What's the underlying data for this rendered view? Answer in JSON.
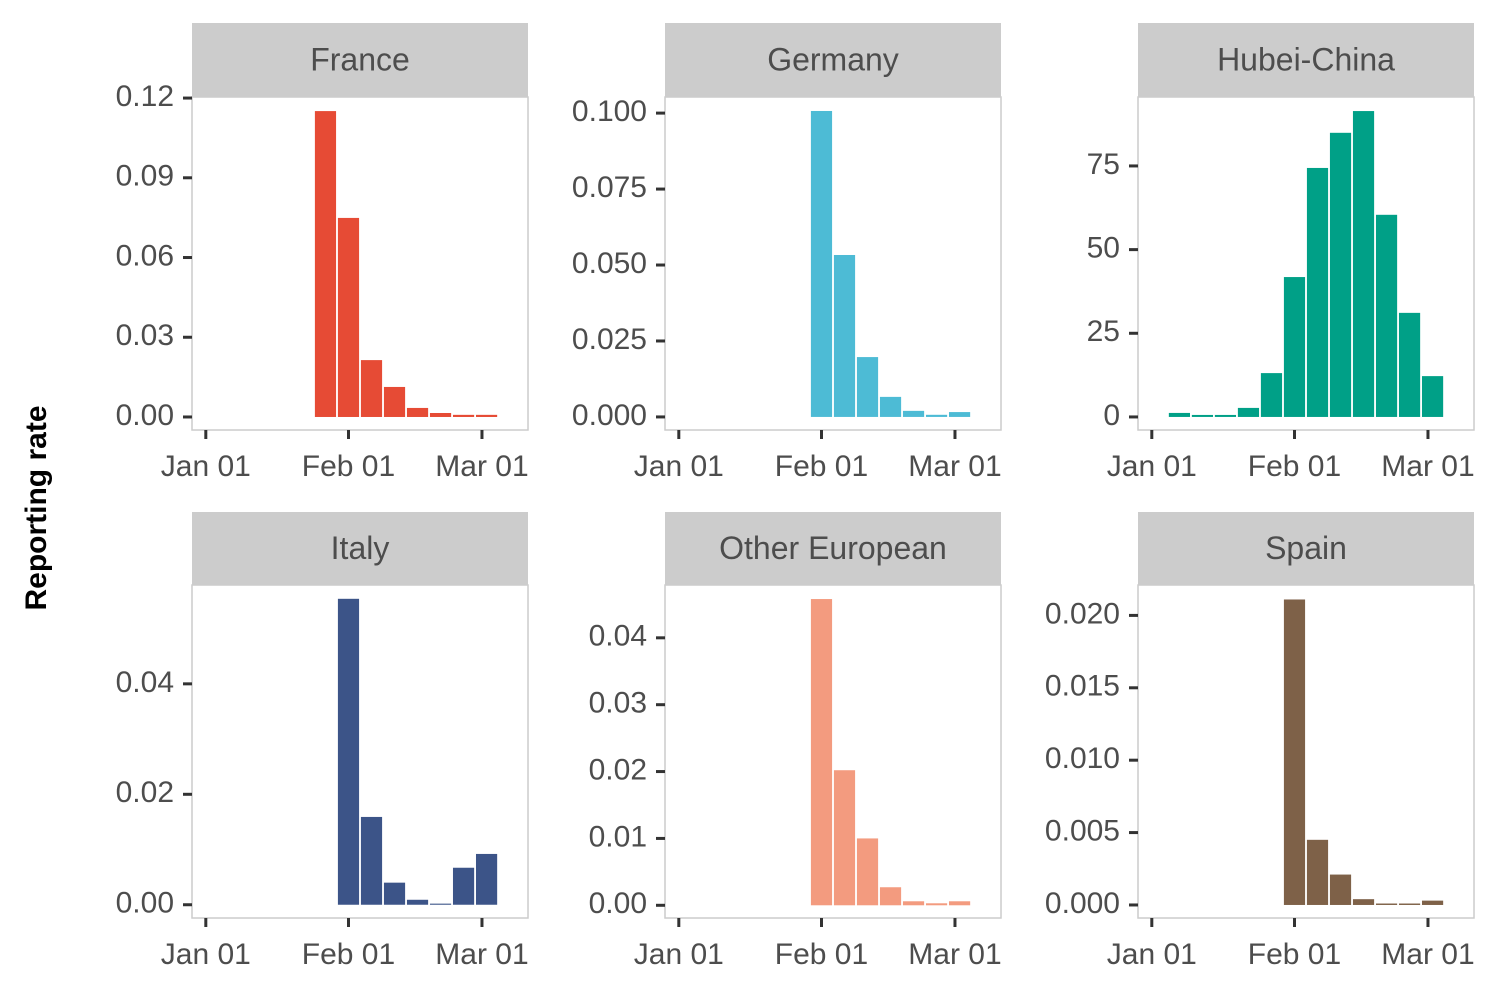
{
  "y_axis_title": "Reporting rate",
  "chart_data": [
    {
      "type": "bar",
      "title": "France",
      "color": "#e64b35",
      "x": [
        27,
        32,
        37,
        42,
        47,
        52,
        57,
        62
      ],
      "values": [
        0.1151,
        0.0749,
        0.0214,
        0.0113,
        0.0034,
        0.0015,
        0.0008,
        0.0008
      ],
      "xlim": [
        -2,
        71
      ],
      "xticks": [
        {
          "value": 1,
          "label": "Jan 01"
        },
        {
          "value": 32,
          "label": "Feb 01"
        },
        {
          "value": 61,
          "label": "Mar 01"
        }
      ],
      "ylim": [
        -0.0049,
        0.1204
      ],
      "yticks": [
        {
          "value": 0,
          "label": "0.00"
        },
        0.03,
        0.06,
        0.09,
        0.12
      ]
    },
    {
      "type": "bar",
      "title": "Germany",
      "color": "#4dbbd5",
      "x": [
        32,
        37,
        42,
        47,
        52,
        57,
        62
      ],
      "values": [
        0.1007,
        0.0533,
        0.0197,
        0.0066,
        0.002,
        0.0007,
        0.0016
      ],
      "xlim": [
        -2,
        71
      ],
      "xticks": [
        {
          "value": 1,
          "label": "Jan 01"
        },
        {
          "value": 32,
          "label": "Feb 01"
        },
        {
          "value": 61,
          "label": "Mar 01"
        }
      ],
      "ylim": [
        -0.0043,
        0.1053
      ],
      "yticks": [
        {
          "value": 0,
          "label": "0.000"
        },
        0.025,
        {
          "value": 0.05,
          "label": "0.050"
        },
        0.075,
        {
          "value": 0.1,
          "label": "0.100"
        }
      ]
    },
    {
      "type": "bar",
      "title": "Hubei-China",
      "color": "#00a087",
      "x": [
        7,
        12,
        17,
        22,
        27,
        32,
        37,
        42,
        47,
        52,
        57,
        62
      ],
      "values": [
        1.2,
        0.6,
        0.6,
        2.7,
        13.1,
        41.8,
        74.4,
        84.9,
        91.4,
        60.4,
        31.1,
        12.2
      ],
      "xlim": [
        -2,
        71
      ],
      "xticks": [
        {
          "value": 1,
          "label": "Jan 01"
        },
        {
          "value": 32,
          "label": "Feb 01"
        },
        {
          "value": 61,
          "label": "Mar 01"
        }
      ],
      "ylim": [
        -3.9,
        95.6
      ],
      "yticks": [
        0,
        25,
        50,
        75
      ]
    },
    {
      "type": "bar",
      "title": "Italy",
      "color": "#3c5488",
      "x": [
        32,
        37,
        42,
        47,
        52,
        57,
        62
      ],
      "values": [
        0.0554,
        0.0159,
        0.004,
        0.0009,
        0.0002,
        0.0067,
        0.0092
      ],
      "xlim": [
        -2,
        71
      ],
      "xticks": [
        {
          "value": 1,
          "label": "Jan 01"
        },
        {
          "value": 32,
          "label": "Feb 01"
        },
        {
          "value": 61,
          "label": "Mar 01"
        }
      ],
      "ylim": [
        -0.0024,
        0.0579
      ],
      "yticks": [
        {
          "value": 0,
          "label": "0.00"
        },
        0.02,
        0.04
      ]
    },
    {
      "type": "bar",
      "title": "Other European",
      "color": "#f39b7f",
      "x": [
        32,
        37,
        42,
        47,
        52,
        57,
        62
      ],
      "values": [
        0.0458,
        0.0202,
        0.01,
        0.0027,
        0.0006,
        0.0003,
        0.0006
      ],
      "xlim": [
        -2,
        71
      ],
      "xticks": [
        {
          "value": 1,
          "label": "Jan 01"
        },
        {
          "value": 32,
          "label": "Feb 01"
        },
        {
          "value": 61,
          "label": "Mar 01"
        }
      ],
      "ylim": [
        -0.0019,
        0.0479
      ],
      "yticks": [
        {
          "value": 0,
          "label": "0.00"
        },
        0.01,
        0.02,
        0.03,
        0.04
      ]
    },
    {
      "type": "bar",
      "title": "Spain",
      "color": "#7e6148",
      "x": [
        32,
        37,
        42,
        47,
        52,
        57,
        62
      ],
      "values": [
        0.0211,
        0.0045,
        0.0021,
        0.0004,
        0.0001,
        0.0001,
        0.0003
      ],
      "xlim": [
        -2,
        71
      ],
      "xticks": [
        {
          "value": 1,
          "label": "Jan 01"
        },
        {
          "value": 32,
          "label": "Feb 01"
        },
        {
          "value": 61,
          "label": "Mar 01"
        }
      ],
      "ylim": [
        -0.0009,
        0.0221
      ],
      "yticks": [
        {
          "value": 0,
          "label": "0.000"
        },
        0.005,
        {
          "value": 0.01,
          "label": "0.010"
        },
        0.015,
        {
          "value": 0.02,
          "label": "0.020"
        }
      ]
    }
  ]
}
